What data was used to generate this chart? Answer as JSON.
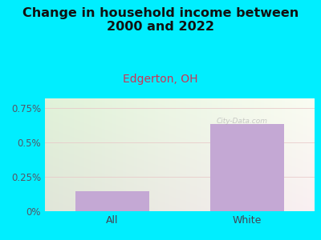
{
  "title": "Change in household income between\n2000 and 2022",
  "subtitle": "Edgerton, OH",
  "categories": [
    "All",
    "White"
  ],
  "values": [
    0.148,
    0.632
  ],
  "bar_color": "#c4a8d4",
  "title_fontsize": 11.5,
  "title_fontweight": "bold",
  "subtitle_fontsize": 10,
  "subtitle_color": "#cc3355",
  "background_color": "#00eeff",
  "ylim": [
    0,
    0.82
  ],
  "yticks": [
    0,
    0.25,
    0.5,
    0.75
  ],
  "ytick_labels": [
    "0%",
    "0.25%",
    "0.5%",
    "0.75%"
  ],
  "grid_color": "#e8c8c8",
  "watermark": "City-Data.com",
  "tick_label_color": "#555566"
}
